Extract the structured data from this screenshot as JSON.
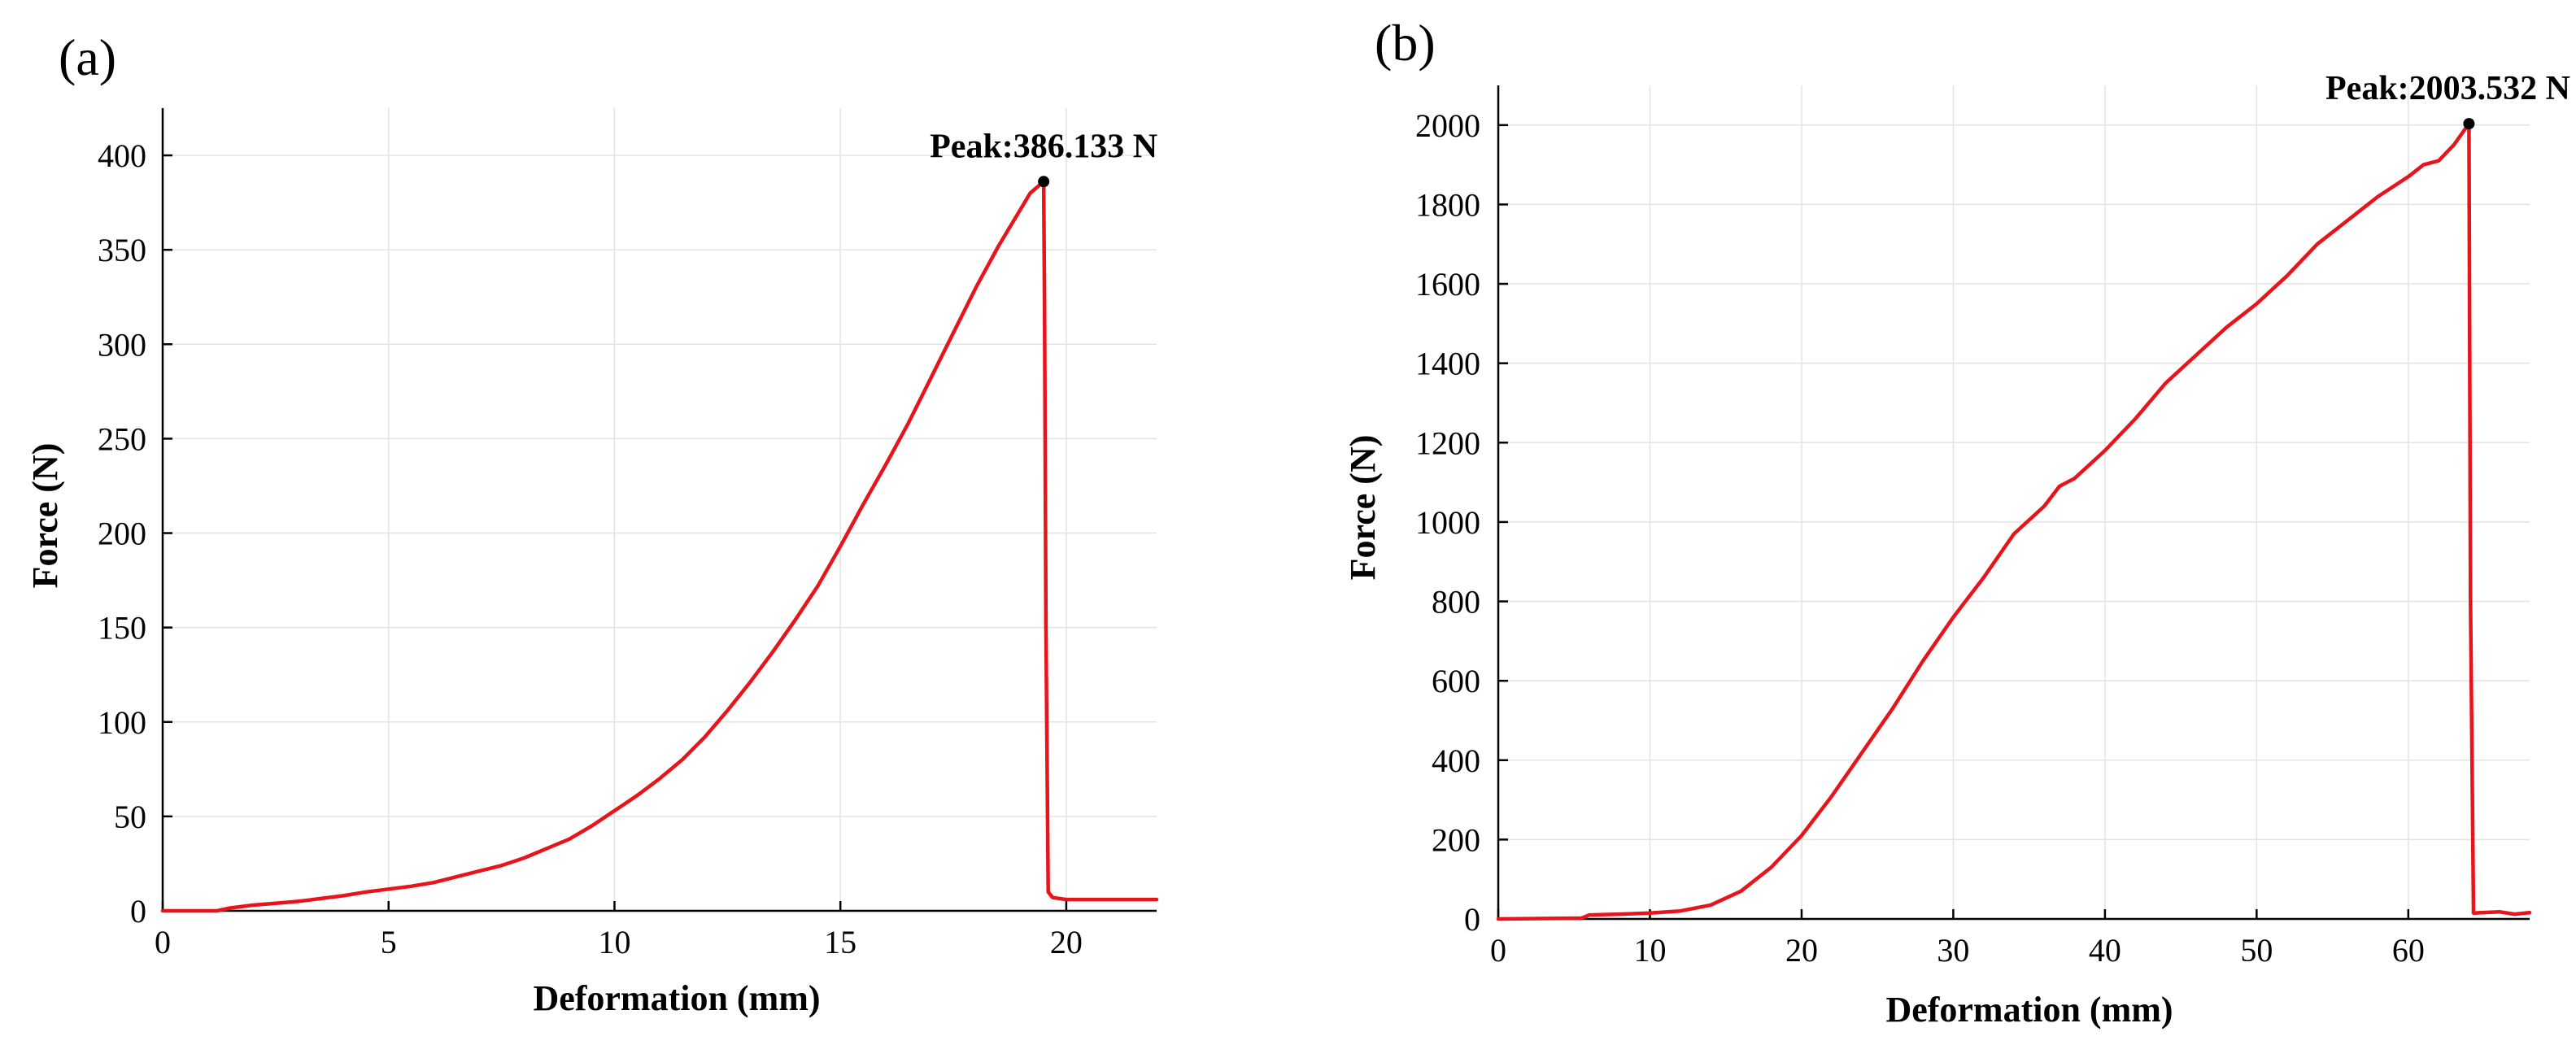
{
  "chart_data": [
    {
      "type": "line",
      "panel_label": "(a)",
      "title": "",
      "xlabel": "Deformation (mm)",
      "ylabel": "Force (N)",
      "xlim": [
        0,
        22
      ],
      "ylim": [
        0,
        425
      ],
      "xticks": [
        0,
        5,
        10,
        15,
        20
      ],
      "yticks": [
        0,
        50,
        100,
        150,
        200,
        250,
        300,
        350,
        400
      ],
      "grid": true,
      "color": "#e8141b",
      "series": [
        {
          "name": "Force",
          "x": [
            0,
            1.2,
            1.5,
            2,
            2.5,
            3,
            3.5,
            4,
            4.5,
            5,
            5.5,
            6,
            6.5,
            7,
            7.5,
            8,
            8.5,
            9,
            9.5,
            10,
            10.5,
            11,
            11.5,
            12,
            12.5,
            13,
            13.5,
            14,
            14.5,
            15,
            15.5,
            16,
            16.5,
            17,
            17.5,
            18,
            18.5,
            19,
            19.2,
            19.5,
            19.52,
            19.55,
            19.6,
            19.7,
            20,
            21,
            22
          ],
          "y": [
            0,
            0,
            1.5,
            3,
            4,
            5,
            6.5,
            8,
            10,
            11.5,
            13,
            15,
            18,
            21,
            24,
            28,
            33,
            38,
            45,
            53,
            61,
            70,
            80,
            92,
            106,
            121,
            137,
            154,
            172,
            193,
            215,
            236,
            258,
            282,
            306,
            330,
            352,
            372,
            380,
            386.133,
            320,
            150,
            10,
            7,
            6,
            6,
            6
          ]
        }
      ],
      "peak": {
        "x": 19.5,
        "y": 386.133,
        "label": "Peak:386.133 N"
      }
    },
    {
      "type": "line",
      "panel_label": "(b)",
      "title": "",
      "xlabel": "Deformation (mm)",
      "ylabel": "Force (N)",
      "xlim": [
        0,
        68
      ],
      "ylim": [
        0,
        2100
      ],
      "xticks": [
        0,
        10,
        20,
        30,
        40,
        50,
        60
      ],
      "yticks": [
        0,
        200,
        400,
        600,
        800,
        1000,
        1200,
        1400,
        1600,
        1800,
        2000
      ],
      "grid": true,
      "color": "#e8141b",
      "series": [
        {
          "name": "Force",
          "x": [
            0,
            5.5,
            6,
            8,
            10,
            12,
            14,
            16,
            18,
            20,
            22,
            24,
            26,
            28,
            30,
            32,
            34,
            36,
            37,
            38,
            40,
            42,
            44,
            46,
            48,
            50,
            52,
            54,
            56,
            58,
            60,
            61,
            62,
            63,
            64,
            64.1,
            64.3,
            66,
            67,
            68
          ],
          "y": [
            0,
            2,
            10,
            12,
            15,
            20,
            35,
            70,
            130,
            210,
            310,
            420,
            530,
            650,
            760,
            860,
            970,
            1040,
            1090,
            1110,
            1180,
            1260,
            1350,
            1420,
            1490,
            1550,
            1620,
            1700,
            1760,
            1820,
            1870,
            1900,
            1910,
            1950,
            2003.532,
            800,
            15,
            18,
            12,
            16
          ]
        }
      ],
      "peak": {
        "x": 64,
        "y": 2003.532,
        "label": "Peak:2003.532 N"
      }
    }
  ]
}
